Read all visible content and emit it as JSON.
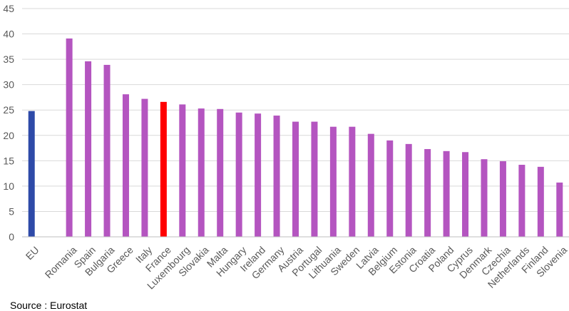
{
  "chart_data": {
    "type": "bar",
    "categories": [
      "EU",
      "",
      "Romania",
      "Spain",
      "Bulgaria",
      "Greece",
      "Italy",
      "France",
      "Luxembourg",
      "Slovakia",
      "Malta",
      "Hungary",
      "Ireland",
      "Germany",
      "Austria",
      "Portugal",
      "Lithuania",
      "Sweden",
      "Latvia",
      "Belgium",
      "Estonia",
      "Croatia",
      "Poland",
      "Cyprus",
      "Denmark",
      "Czechia",
      "Netherlands",
      "Finland",
      "Slovenia"
    ],
    "values": [
      24.8,
      null,
      39.1,
      34.6,
      33.9,
      28.1,
      27.2,
      26.6,
      26.1,
      25.3,
      25.2,
      24.5,
      24.3,
      23.9,
      22.7,
      22.7,
      21.7,
      21.7,
      20.3,
      19.0,
      18.3,
      17.3,
      16.9,
      16.7,
      15.3,
      14.9,
      14.2,
      13.8,
      10.7
    ],
    "colors": [
      "#2e4aa8",
      null,
      "#b455c0",
      "#b455c0",
      "#b455c0",
      "#b455c0",
      "#b455c0",
      "#ff0000",
      "#b455c0",
      "#b455c0",
      "#b455c0",
      "#b455c0",
      "#b455c0",
      "#b455c0",
      "#b455c0",
      "#b455c0",
      "#b455c0",
      "#b455c0",
      "#b455c0",
      "#b455c0",
      "#b455c0",
      "#b455c0",
      "#b455c0",
      "#b455c0",
      "#b455c0",
      "#b455c0",
      "#b455c0",
      "#b455c0",
      "#b455c0"
    ],
    "yticks": [
      0,
      5,
      10,
      15,
      20,
      25,
      30,
      35,
      40,
      45
    ],
    "ylim": [
      0,
      45
    ],
    "grid": true,
    "legend": "none",
    "gridline_color": "#d9d9d9",
    "axis_color": "#bfbfbf"
  },
  "source": "Source : Eurostat"
}
